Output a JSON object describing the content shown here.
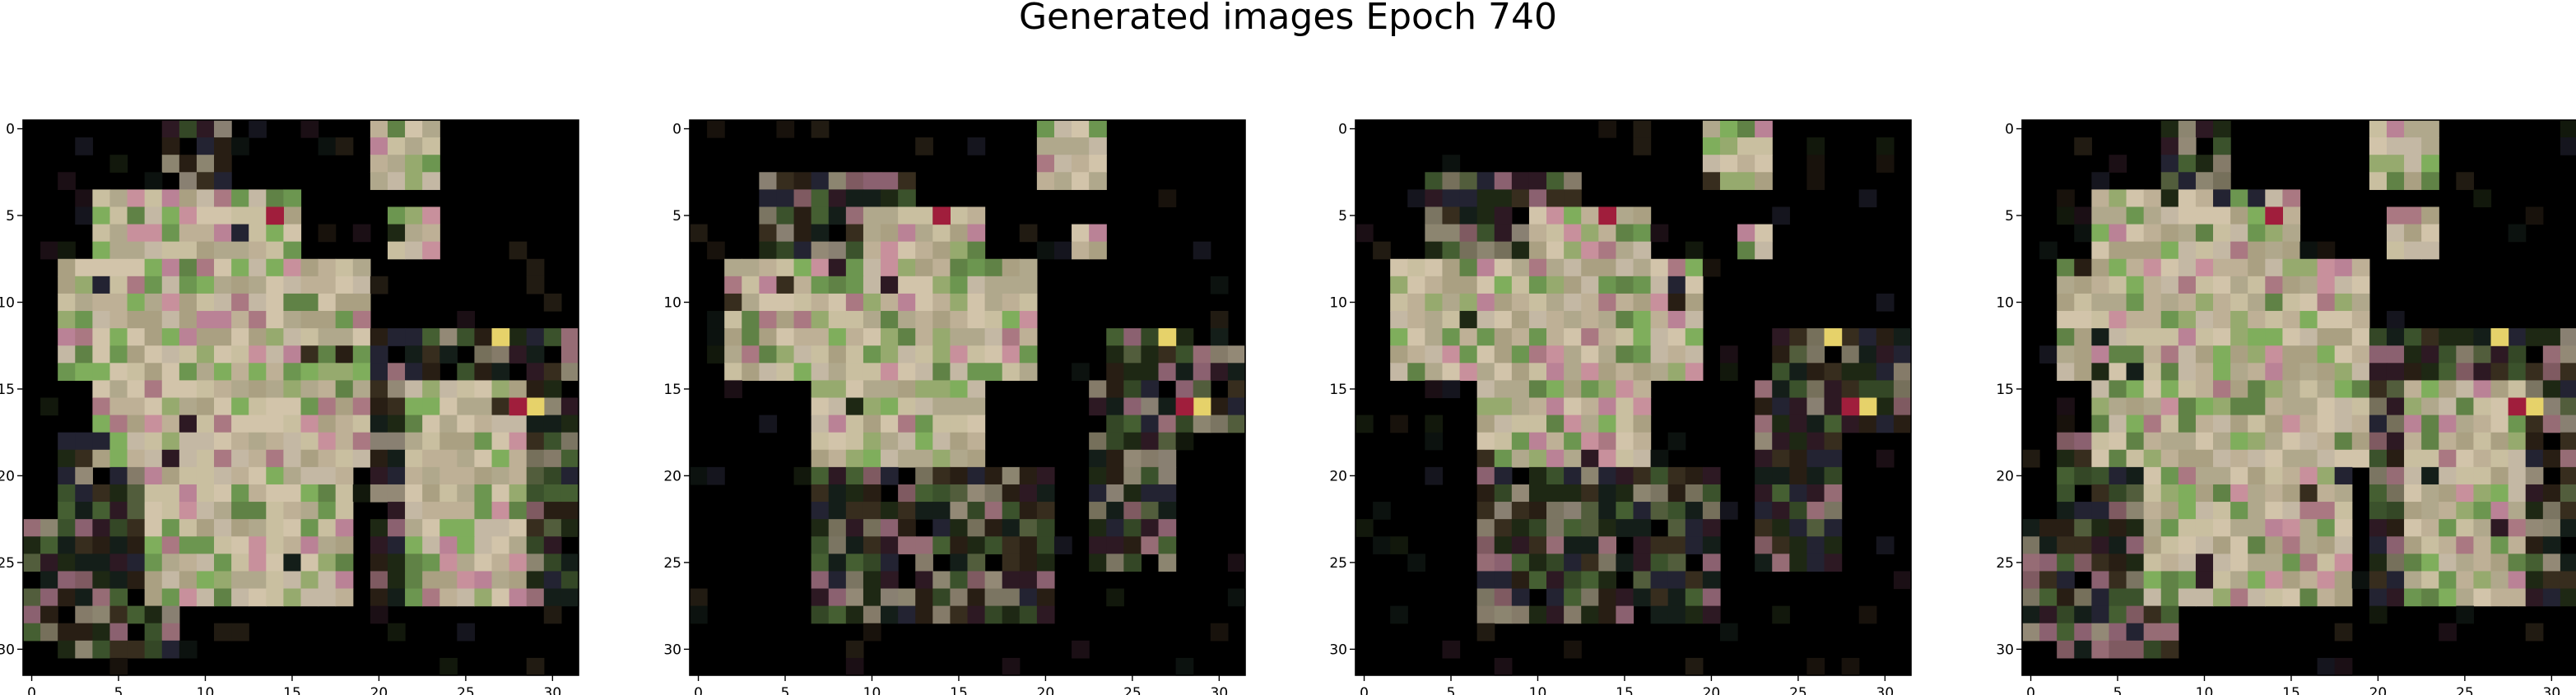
{
  "figure": {
    "suptitle": "Generated images Epoch 740"
  },
  "chart_data": [
    {
      "type": "heatmap",
      "title": "",
      "xlabel": "",
      "ylabel": "",
      "xlim": [
        -0.5,
        31.5
      ],
      "ylim": [
        31.5,
        -0.5
      ],
      "xticks": [
        0,
        5,
        10,
        15,
        20,
        25,
        30
      ],
      "yticks": [
        0,
        5,
        10,
        15,
        20,
        25,
        30
      ],
      "grid": false
    },
    {
      "type": "heatmap",
      "title": "",
      "xlabel": "",
      "ylabel": "",
      "xlim": [
        -0.5,
        31.5
      ],
      "ylim": [
        31.5,
        -0.5
      ],
      "xticks": [
        0,
        5,
        10,
        15,
        20,
        25,
        30
      ],
      "yticks": [
        0,
        5,
        10,
        15,
        20,
        25,
        30
      ],
      "grid": false
    },
    {
      "type": "heatmap",
      "title": "",
      "xlabel": "",
      "ylabel": "",
      "xlim": [
        -0.5,
        31.5
      ],
      "ylim": [
        31.5,
        -0.5
      ],
      "xticks": [
        0,
        5,
        10,
        15,
        20,
        25,
        30
      ],
      "yticks": [
        0,
        5,
        10,
        15,
        20,
        25,
        30
      ],
      "grid": false
    },
    {
      "type": "heatmap",
      "title": "",
      "xlabel": "",
      "ylabel": "",
      "xlim": [
        -0.5,
        31.5
      ],
      "ylim": [
        31.5,
        -0.5
      ],
      "xticks": [
        0,
        5,
        10,
        15,
        20,
        25,
        30
      ],
      "yticks": [
        0,
        5,
        10,
        15,
        20,
        25,
        30
      ],
      "grid": false
    }
  ],
  "colors": {
    "background": "#000000",
    "blob": "#c9bfa0",
    "green": "#7fae5c",
    "pink": "#c8909c",
    "red": "#a01e3c",
    "yellow": "#e6d26a"
  }
}
